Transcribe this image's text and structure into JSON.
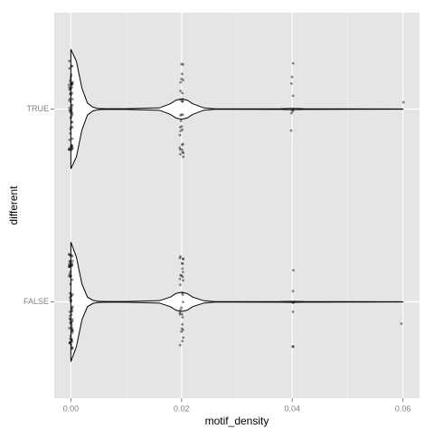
{
  "chart_data": {
    "type": "violin",
    "x_label": "motif_density",
    "y_label": "different",
    "categories": [
      "TRUE",
      "FALSE"
    ],
    "xlim": [
      -0.003,
      0.063
    ],
    "xticks": [
      {
        "value": 0,
        "label": "0.00"
      },
      {
        "value": 0.02,
        "label": "0.02"
      },
      {
        "value": 0.04,
        "label": "0.04"
      },
      {
        "value": 0.06,
        "label": "0.06"
      }
    ],
    "grid": true,
    "panel_color": "#e5e5e5",
    "point_color": "#000000",
    "density": [
      {
        "x": [
          0,
          0.001,
          0.002,
          0.003,
          0.004,
          0.005,
          0.006,
          0.01,
          0.016,
          0.018,
          0.019,
          0.02,
          0.021,
          0.022,
          0.024,
          0.026,
          0.038,
          0.04,
          0.042,
          0.06
        ],
        "widths": [
          1,
          0.8,
          0.35,
          0.1,
          0.03,
          0.01,
          0.005,
          0.005,
          0.02,
          0.09,
          0.15,
          0.17,
          0.15,
          0.09,
          0.02,
          0.003,
          0.005,
          0.012,
          0.005,
          0.001
        ]
      },
      {
        "x": [
          0,
          0.001,
          0.002,
          0.003,
          0.004,
          0.005,
          0.006,
          0.01,
          0.016,
          0.018,
          0.019,
          0.02,
          0.021,
          0.022,
          0.024,
          0.026,
          0.038,
          0.04,
          0.042,
          0.06
        ],
        "widths": [
          1,
          0.75,
          0.3,
          0.08,
          0.025,
          0.01,
          0.005,
          0.005,
          0.02,
          0.08,
          0.14,
          0.16,
          0.14,
          0.08,
          0.02,
          0.003,
          0.005,
          0.01,
          0.005,
          0.001
        ]
      }
    ],
    "points": [
      {
        "x": [
          0,
          0.02,
          0.04,
          0.06
        ],
        "counts": [
          60,
          30,
          8,
          1
        ]
      },
      {
        "x": [
          0,
          0.02,
          0.04,
          0.06
        ],
        "counts": [
          70,
          30,
          6,
          1
        ]
      }
    ]
  }
}
